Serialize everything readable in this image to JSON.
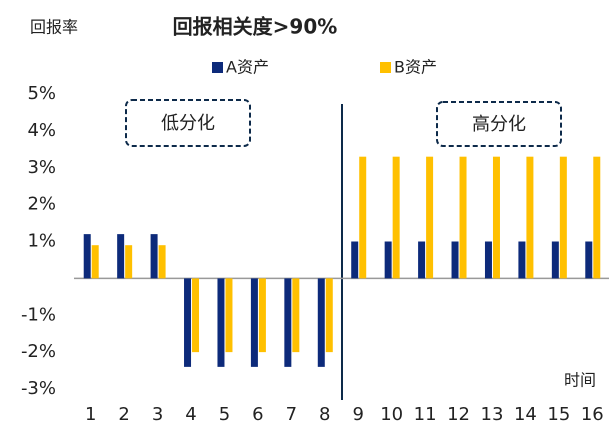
{
  "chart_data": {
    "type": "bar",
    "title": "回报相关度>90%",
    "y_label": "回报率",
    "x_label": "时间",
    "annotations": [
      "低分化",
      "高分化"
    ],
    "categories": [
      "1",
      "2",
      "3",
      "4",
      "5",
      "6",
      "7",
      "8",
      "9",
      "10",
      "11",
      "12",
      "13",
      "14",
      "15",
      "16"
    ],
    "series": [
      {
        "name": "A资产",
        "color": "#0d2a7a",
        "values": [
          1.2,
          1.2,
          1.2,
          -2.4,
          -2.4,
          -2.4,
          -2.4,
          -2.4,
          1.0,
          1.0,
          1.0,
          1.0,
          1.0,
          1.0,
          1.0,
          1.0
        ]
      },
      {
        "name": "B资产",
        "color": "#ffc000",
        "values": [
          0.9,
          0.9,
          0.9,
          -2.0,
          -2.0,
          -2.0,
          -2.0,
          -2.0,
          3.3,
          3.3,
          3.3,
          3.3,
          3.3,
          3.3,
          3.3,
          3.3
        ]
      }
    ],
    "ylim": [
      -3,
      5
    ],
    "yticks": [
      {
        "value": 5,
        "label": "5%"
      },
      {
        "value": 4,
        "label": "4%"
      },
      {
        "value": 3,
        "label": "3%"
      },
      {
        "value": 2,
        "label": "2%"
      },
      {
        "value": 1,
        "label": "1%"
      },
      {
        "value": -1,
        "label": "-1%"
      },
      {
        "value": -2,
        "label": "-2%"
      },
      {
        "value": -3,
        "label": "-3%"
      }
    ]
  }
}
